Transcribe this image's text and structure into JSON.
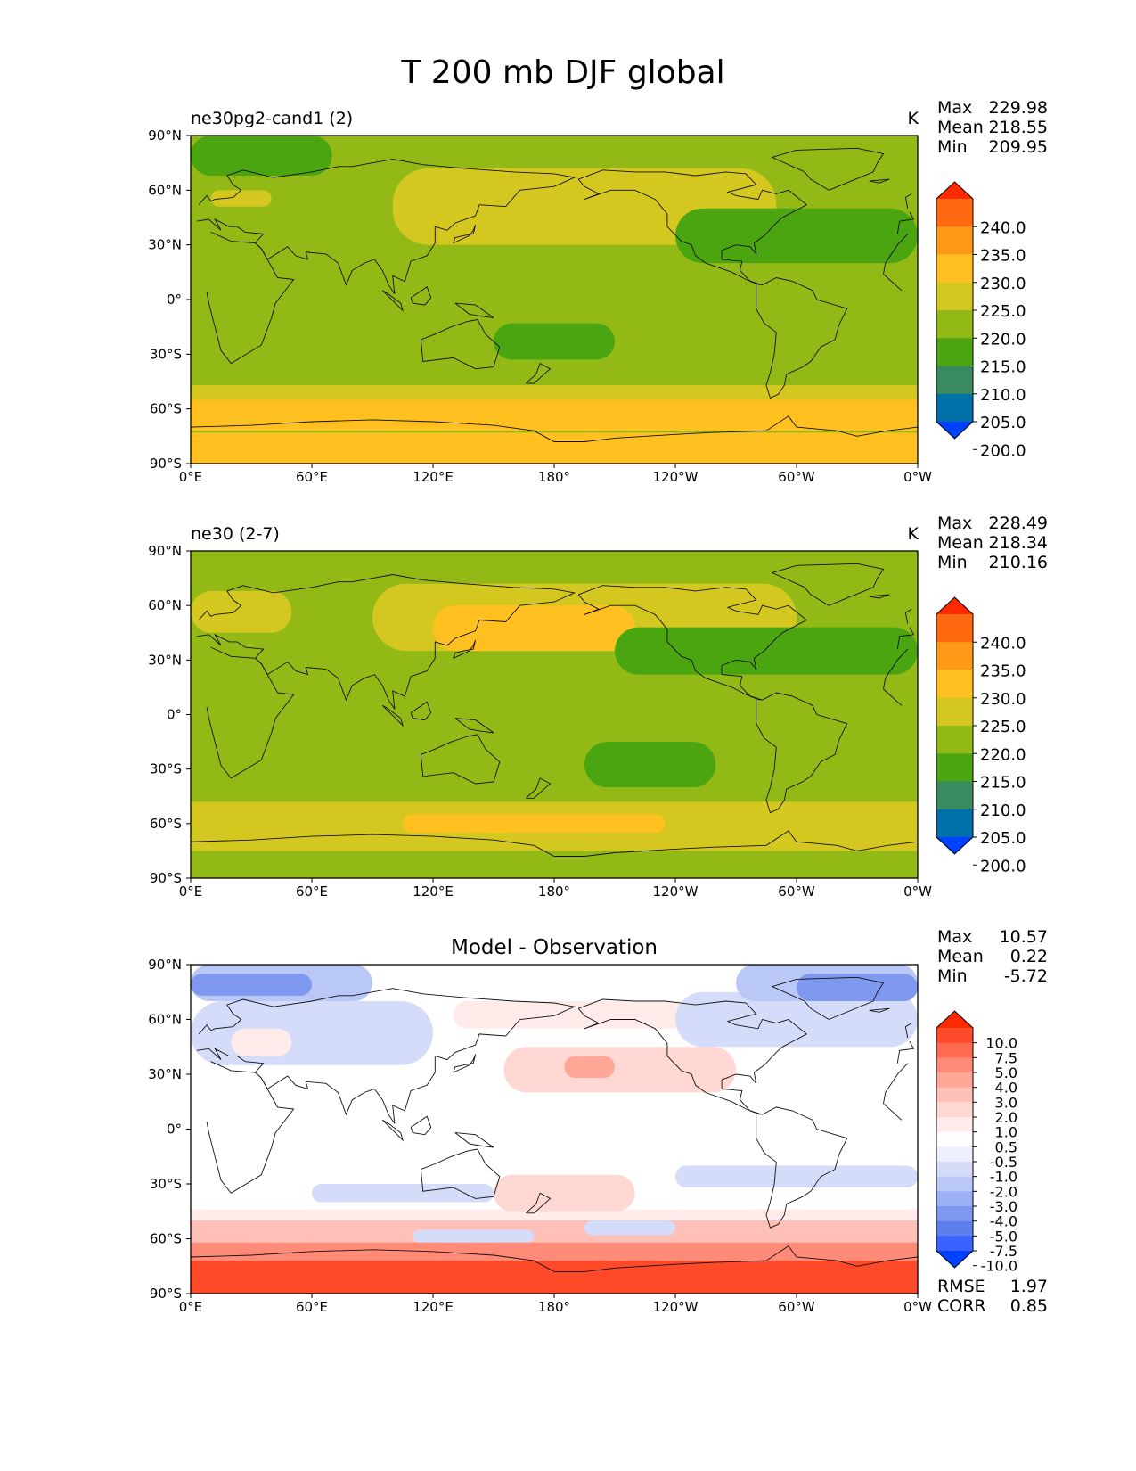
{
  "chart_data": {
    "type": "heatmap",
    "title": "T 200 mb DJF global",
    "panels": [
      {
        "id": "test",
        "title": "ne30pg2-cand1 (2)",
        "units": "K",
        "stats": [
          {
            "label": "Max",
            "value": "229.98"
          },
          {
            "label": "Mean",
            "value": "218.55"
          },
          {
            "label": "Min",
            "value": "209.95"
          }
        ],
        "colorbar": {
          "levels": [
            "240.0",
            "235.0",
            "230.0",
            "225.0",
            "220.0",
            "215.0",
            "210.0",
            "205.0",
            "200.0"
          ],
          "colors": [
            "#ff2a00",
            "#ff6a10",
            "#ff9a18",
            "#ffc020",
            "#d4c820",
            "#93b916",
            "#4aa510",
            "#3a8a60",
            "#0070a8",
            "#0040ff"
          ]
        },
        "field": {
          "base": "215-220",
          "regions": [
            {
              "lon": [
                0,
                360
              ],
              "lat": [
                -90,
                -73
              ],
              "band": "225-230"
            },
            {
              "lon": [
                0,
                360
              ],
              "lat": [
                -72,
                -55
              ],
              "band": "225-230"
            },
            {
              "lon": [
                0,
                360
              ],
              "lat": [
                -55,
                -47
              ],
              "band": "220-225"
            },
            {
              "lon": [
                150,
                210
              ],
              "lat": [
                -33,
                -13
              ],
              "band": "210-215"
            },
            {
              "lon": [
                0,
                70
              ],
              "lat": [
                68,
                90
              ],
              "band": "210-215"
            },
            {
              "lon": [
                125,
                215
              ],
              "lat": [
                33,
                67
              ],
              "band": "225-230"
            },
            {
              "lon": [
                100,
                290
              ],
              "lat": [
                30,
                72
              ],
              "band": "220-225"
            },
            {
              "lon": [
                240,
                360
              ],
              "lat": [
                20,
                50
              ],
              "band": "210-215"
            },
            {
              "lon": [
                10,
                40
              ],
              "lat": [
                51,
                60
              ],
              "band": "220-225"
            }
          ]
        },
        "xticks": [
          "0°E",
          "60°E",
          "120°E",
          "180°",
          "120°W",
          "60°W",
          "0°W"
        ],
        "yticks": [
          "90°N",
          "60°N",
          "30°N",
          "0°",
          "30°S",
          "60°S",
          "90°S"
        ]
      },
      {
        "id": "reference",
        "title": "ne30 (2-7)",
        "units": "K",
        "stats": [
          {
            "label": "Max",
            "value": "228.49"
          },
          {
            "label": "Mean",
            "value": "218.34"
          },
          {
            "label": "Min",
            "value": "210.16"
          }
        ],
        "colorbar": {
          "levels": [
            "240.0",
            "235.0",
            "230.0",
            "225.0",
            "220.0",
            "215.0",
            "210.0",
            "205.0",
            "200.0"
          ],
          "colors": [
            "#ff2a00",
            "#ff6a10",
            "#ff9a18",
            "#ffc020",
            "#d4c820",
            "#93b916",
            "#4aa510",
            "#3a8a60",
            "#0070a8",
            "#0040ff"
          ]
        },
        "field": {
          "base": "215-220",
          "regions": [
            {
              "lon": [
                0,
                360
              ],
              "lat": [
                -75,
                -48
              ],
              "band": "220-225"
            },
            {
              "lon": [
                105,
                235
              ],
              "lat": [
                -65,
                -55
              ],
              "band": "225-230"
            },
            {
              "lon": [
                195,
                260
              ],
              "lat": [
                -40,
                -15
              ],
              "band": "210-215"
            },
            {
              "lon": [
                90,
                300
              ],
              "lat": [
                35,
                72
              ],
              "band": "220-225"
            },
            {
              "lon": [
                120,
                220
              ],
              "lat": [
                35,
                60
              ],
              "band": "225-230"
            },
            {
              "lon": [
                210,
                360
              ],
              "lat": [
                22,
                48
              ],
              "band": "210-215"
            },
            {
              "lon": [
                0,
                50
              ],
              "lat": [
                45,
                68
              ],
              "band": "220-225"
            }
          ]
        },
        "xticks": [
          "0°E",
          "60°E",
          "120°E",
          "180°",
          "120°W",
          "60°W",
          "0°W"
        ],
        "yticks": [
          "90°N",
          "60°N",
          "30°N",
          "0°",
          "30°S",
          "60°S",
          "90°S"
        ]
      },
      {
        "id": "diff",
        "title": "Model - Observation",
        "units": "",
        "stats": [
          {
            "label": "Max",
            "value": "10.57"
          },
          {
            "label": "Mean",
            "value": "0.22"
          },
          {
            "label": "Min",
            "value": "-5.72"
          }
        ],
        "colorbar": {
          "levels": [
            "10.0",
            "7.5",
            "5.0",
            "4.0",
            "3.0",
            "2.0",
            "1.0",
            "0.5",
            "-0.5",
            "-1.0",
            "-2.0",
            "-3.0",
            "-4.0",
            "-5.0",
            "-7.5",
            "-10.0"
          ],
          "colors": [
            "#ff2a00",
            "#ff4a2a",
            "#ff6a50",
            "#ff8a78",
            "#ffa898",
            "#ffc0b8",
            "#ffd8d4",
            "#ffecea",
            "#ffffff",
            "#eceffd",
            "#d4dcfa",
            "#bac8f7",
            "#9cb0f3",
            "#7f98f0",
            "#5e7eee",
            "#3a62ff",
            "#0040ff"
          ]
        },
        "field": {
          "base": "-0.5-0.5",
          "regions": [
            {
              "lon": [
                0,
                360
              ],
              "lat": [
                -90,
                -72
              ],
              "band": "7.5-10"
            },
            {
              "lon": [
                0,
                360
              ],
              "lat": [
                -72,
                -62
              ],
              "band": "4-5"
            },
            {
              "lon": [
                0,
                360
              ],
              "lat": [
                -62,
                -50
              ],
              "band": "2-3"
            },
            {
              "lon": [
                0,
                360
              ],
              "lat": [
                -50,
                -44
              ],
              "band": "0.5-1"
            },
            {
              "lon": [
                150,
                220
              ],
              "lat": [
                -45,
                -25
              ],
              "band": "1-2"
            },
            {
              "lon": [
                110,
                170
              ],
              "lat": [
                -62,
                -55
              ],
              "band": "-2--1"
            },
            {
              "lon": [
                195,
                240
              ],
              "lat": [
                -58,
                -50
              ],
              "band": "-2--1"
            },
            {
              "lon": [
                240,
                360
              ],
              "lat": [
                -32,
                -20
              ],
              "band": "-2--1"
            },
            {
              "lon": [
                60,
                150
              ],
              "lat": [
                -40,
                -30
              ],
              "band": "-2--1"
            },
            {
              "lon": [
                155,
                270
              ],
              "lat": [
                20,
                45
              ],
              "band": "1-2"
            },
            {
              "lon": [
                185,
                210
              ],
              "lat": [
                28,
                40
              ],
              "band": "3-4"
            },
            {
              "lon": [
                130,
                270
              ],
              "lat": [
                55,
                70
              ],
              "band": "0.5-1"
            },
            {
              "lon": [
                0,
                120
              ],
              "lat": [
                35,
                70
              ],
              "band": "-2--1"
            },
            {
              "lon": [
                240,
                360
              ],
              "lat": [
                45,
                75
              ],
              "band": "-2--1"
            },
            {
              "lon": [
                0,
                90
              ],
              "lat": [
                70,
                90
              ],
              "band": "-3--2"
            },
            {
              "lon": [
                270,
                360
              ],
              "lat": [
                70,
                90
              ],
              "band": "-3--2"
            },
            {
              "lon": [
                0,
                60
              ],
              "lat": [
                73,
                85
              ],
              "band": "-5--4"
            },
            {
              "lon": [
                300,
                360
              ],
              "lat": [
                70,
                85
              ],
              "band": "-5--4"
            },
            {
              "lon": [
                20,
                50
              ],
              "lat": [
                40,
                55
              ],
              "band": "0.5-1"
            }
          ]
        },
        "xticks": [
          "0°E",
          "60°E",
          "120°E",
          "180°",
          "120°W",
          "60°W",
          "0°W"
        ],
        "yticks": [
          "90°N",
          "60°N",
          "30°N",
          "0°",
          "30°S",
          "60°S",
          "90°S"
        ],
        "metrics": [
          {
            "label": "RMSE",
            "value": "1.97"
          },
          {
            "label": "CORR",
            "value": "0.85"
          }
        ]
      }
    ]
  }
}
